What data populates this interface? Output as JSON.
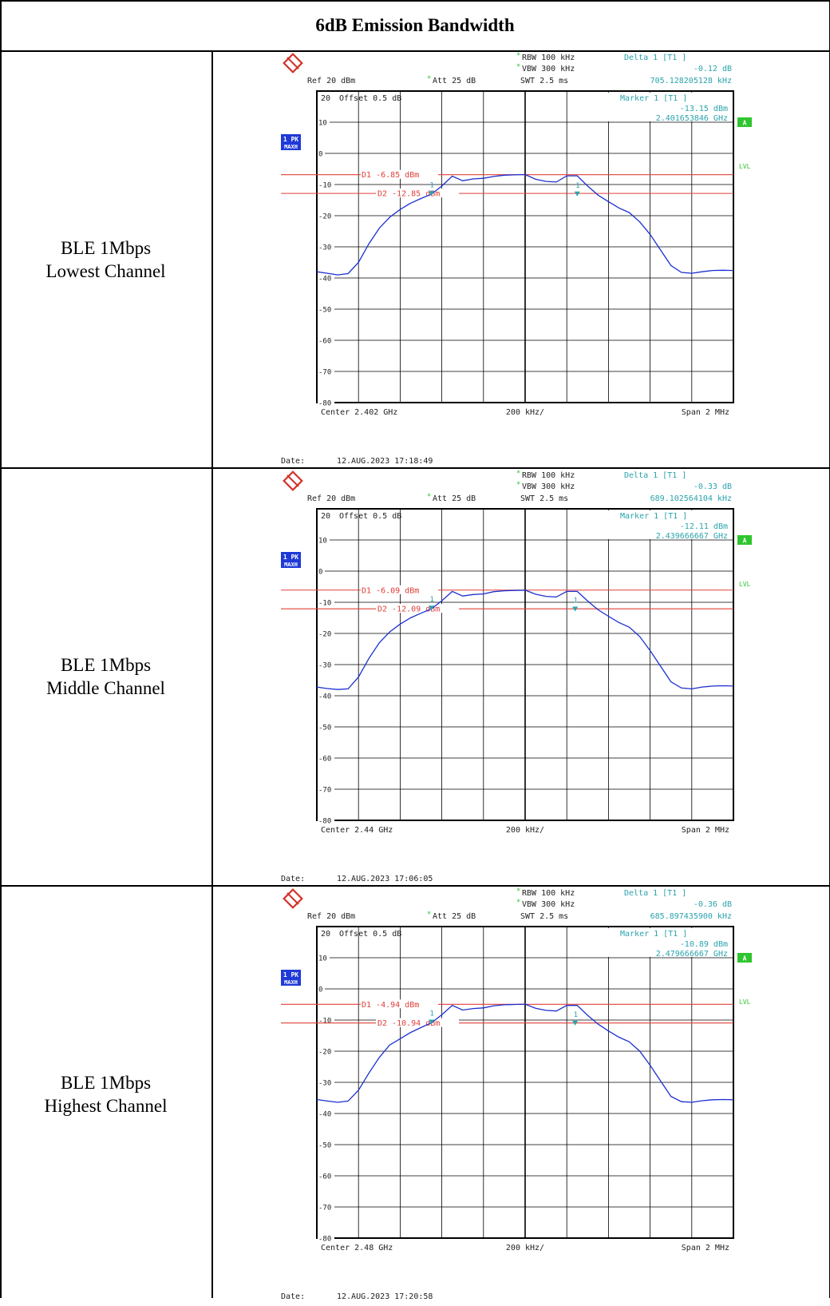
{
  "table_title": "6dB Emission Bandwidth",
  "colors": {
    "trace": "#1c2fd0",
    "display_line": "#e0403a",
    "info_text": "#2aa3ad",
    "grid": "#000000",
    "badge_blue": "#1f3ad8",
    "badge_green": "#2fc52f"
  },
  "common": {
    "rbw": "RBW 100 kHz",
    "vbw": "VBW 300 kHz",
    "ref": "Ref  20 dBm",
    "att": "Att  25 dB",
    "swt": "SWT 2.5 ms",
    "offset": "Offset  0.5 dB",
    "delta_label": "Delta 1 [T1 ]",
    "marker_label": "Marker 1 [T1 ]",
    "per_div": "200 kHz/",
    "span": "Span  2 MHz",
    "trace_badge_1": "1 PK",
    "trace_badge_2": "MAXH",
    "badge_a": "A",
    "lvl": "LVL",
    "date_label": "Date:",
    "y_tick_labels": [
      "20",
      "10",
      "0",
      "-10",
      "-20",
      "-30",
      "-40",
      "-50",
      "-60",
      "-70",
      "-80"
    ]
  },
  "rows": [
    {
      "label_line1": "BLE 1Mbps",
      "label_line2": "Lowest Channel",
      "delta_value": "-0.12 dB",
      "delta_freq": "705.128205128 kHz",
      "marker_level": "-13.15 dBm",
      "marker_freq": "2.401653846 GHz",
      "d1_text": "D1  -6.85  dBm",
      "d2_text": "D2  -12.85  dBm",
      "center": "Center  2.402 GHz",
      "date_text": "12.AUG.2023  17:18:49"
    },
    {
      "label_line1": "BLE 1Mbps",
      "label_line2": "Middle Channel",
      "delta_value": "-0.33 dB",
      "delta_freq": "689.102564104 kHz",
      "marker_level": "-12.11 dBm",
      "marker_freq": "2.439666667 GHz",
      "d1_text": "D1  -6.09  dBm",
      "d2_text": "D2  -12.09  dBm",
      "center": "Center  2.44 GHz",
      "date_text": "12.AUG.2023  17:06:05"
    },
    {
      "label_line1": "BLE 1Mbps",
      "label_line2": "Highest Channel",
      "delta_value": "-0.36 dB",
      "delta_freq": "685.897435900 kHz",
      "marker_level": "-10.89 dBm",
      "marker_freq": "2.479666667 GHz",
      "d1_text": "D1  -4.94  dBm",
      "d2_text": "D2  -10.94  dBm",
      "center": "Center  2.48 GHz",
      "date_text": "12.AUG.2023  17:20:58"
    }
  ],
  "chart_data": [
    {
      "type": "line",
      "xlabel": "",
      "ylabel": "",
      "x_center_ghz": 2.402,
      "x_span_mhz": 2,
      "ylim": [
        -80,
        20
      ],
      "grid": true,
      "display_lines_dbm": [
        -6.85,
        -12.85
      ],
      "markers": [
        {
          "name": "1",
          "offset_mhz": -0.45,
          "level_dbm": -13.15
        },
        {
          "name": "1",
          "offset_mhz": 0.25,
          "level_dbm": -13.27
        }
      ],
      "series": [
        {
          "name": "1 PK MAXH",
          "x": [
            -1.0,
            -0.95,
            -0.9,
            -0.85,
            -0.8,
            -0.75,
            -0.7,
            -0.65,
            -0.6,
            -0.55,
            -0.5,
            -0.45,
            -0.4,
            -0.35,
            -0.3,
            -0.25,
            -0.2,
            -0.15,
            -0.1,
            -0.05,
            0.0,
            0.05,
            0.1,
            0.15,
            0.2,
            0.25,
            0.3,
            0.35,
            0.4,
            0.45,
            0.5,
            0.55,
            0.6,
            0.65,
            0.7,
            0.75,
            0.8,
            0.85,
            0.9,
            0.95,
            1.0
          ],
          "y": [
            -38,
            -38.5,
            -39,
            -38.6,
            -35,
            -29,
            -24,
            -20.5,
            -18,
            -16,
            -14.5,
            -13.1,
            -10.5,
            -7.3,
            -8.8,
            -8.2,
            -8,
            -7.4,
            -7,
            -6.9,
            -6.8,
            -8.3,
            -9,
            -9.2,
            -7.2,
            -7.2,
            -10.5,
            -13.4,
            -15.5,
            -17.5,
            -19,
            -22,
            -26,
            -31,
            -36,
            -38.2,
            -38.5,
            -38,
            -37.6,
            -37.5,
            -37.6
          ]
        }
      ]
    },
    {
      "type": "line",
      "xlabel": "",
      "ylabel": "",
      "x_center_ghz": 2.44,
      "x_span_mhz": 2,
      "ylim": [
        -80,
        20
      ],
      "grid": true,
      "display_lines_dbm": [
        -6.09,
        -12.09
      ],
      "markers": [
        {
          "name": "1",
          "offset_mhz": -0.45,
          "level_dbm": -12.11
        },
        {
          "name": "1",
          "offset_mhz": 0.24,
          "level_dbm": -12.44
        }
      ],
      "series": [
        {
          "name": "1 PK MAXH",
          "x": [
            -1.0,
            -0.95,
            -0.9,
            -0.85,
            -0.8,
            -0.75,
            -0.7,
            -0.65,
            -0.6,
            -0.55,
            -0.5,
            -0.45,
            -0.4,
            -0.35,
            -0.3,
            -0.25,
            -0.2,
            -0.15,
            -0.1,
            -0.05,
            0.0,
            0.05,
            0.1,
            0.15,
            0.2,
            0.25,
            0.3,
            0.35,
            0.4,
            0.45,
            0.5,
            0.55,
            0.6,
            0.65,
            0.7,
            0.75,
            0.8,
            0.85,
            0.9,
            0.95,
            1.0
          ],
          "y": [
            -37.2,
            -37.7,
            -38,
            -37.8,
            -34,
            -28,
            -23,
            -19.5,
            -17,
            -15,
            -13.5,
            -12.1,
            -9.5,
            -6.5,
            -8,
            -7.5,
            -7.3,
            -6.6,
            -6.3,
            -6.2,
            -6.1,
            -7.4,
            -8.1,
            -8.3,
            -6.5,
            -6.5,
            -9.6,
            -12.4,
            -14.5,
            -16.5,
            -18,
            -21,
            -25.5,
            -30.5,
            -35.5,
            -37.5,
            -37.8,
            -37.2,
            -36.9,
            -36.8,
            -36.9
          ]
        }
      ]
    },
    {
      "type": "line",
      "xlabel": "",
      "ylabel": "",
      "x_center_ghz": 2.48,
      "x_span_mhz": 2,
      "ylim": [
        -80,
        20
      ],
      "grid": true,
      "display_lines_dbm": [
        -4.94,
        -10.94
      ],
      "markers": [
        {
          "name": "1",
          "offset_mhz": -0.45,
          "level_dbm": -10.89
        },
        {
          "name": "1",
          "offset_mhz": 0.24,
          "level_dbm": -11.25
        }
      ],
      "series": [
        {
          "name": "1 PK MAXH",
          "x": [
            -1.0,
            -0.95,
            -0.9,
            -0.85,
            -0.8,
            -0.75,
            -0.7,
            -0.65,
            -0.6,
            -0.55,
            -0.5,
            -0.45,
            -0.4,
            -0.35,
            -0.3,
            -0.25,
            -0.2,
            -0.15,
            -0.1,
            -0.05,
            0.0,
            0.05,
            0.1,
            0.15,
            0.2,
            0.25,
            0.3,
            0.35,
            0.4,
            0.45,
            0.5,
            0.55,
            0.6,
            0.65,
            0.7,
            0.75,
            0.8,
            0.85,
            0.9,
            0.95,
            1.0
          ],
          "y": [
            -35.5,
            -36,
            -36.4,
            -36,
            -32.5,
            -27,
            -22,
            -18,
            -16,
            -14,
            -12.4,
            -10.9,
            -8.3,
            -5.3,
            -6.8,
            -6.3,
            -6.1,
            -5.4,
            -5.1,
            -5,
            -4.9,
            -6.2,
            -6.9,
            -7.1,
            -5.3,
            -5.3,
            -8.5,
            -11.3,
            -13.5,
            -15.5,
            -17,
            -20,
            -24.5,
            -29.5,
            -34.5,
            -36.2,
            -36.4,
            -35.9,
            -35.6,
            -35.5,
            -35.6
          ]
        }
      ]
    }
  ]
}
